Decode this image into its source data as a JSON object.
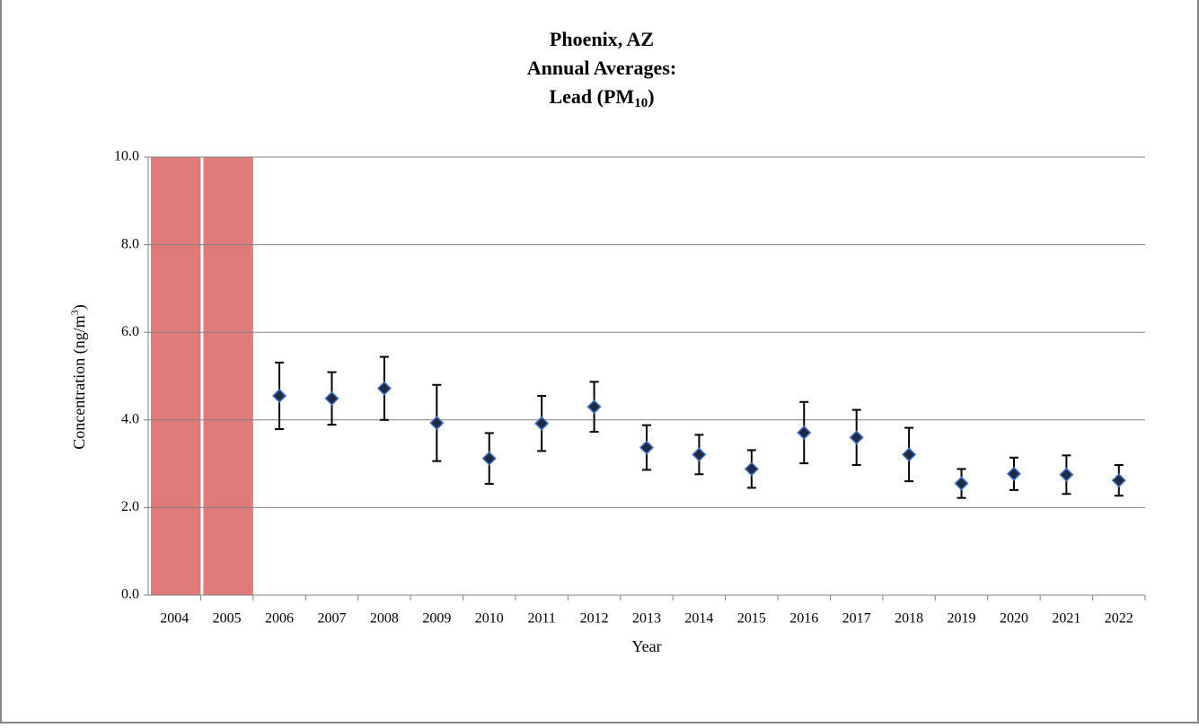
{
  "chart_data": {
    "type": "errorbar",
    "title_lines": [
      "Phoenix, AZ",
      "Annual Averages:"
    ],
    "title_last": [
      "Lead (PM",
      "10",
      ")"
    ],
    "ylabel": [
      "Concentration (ng/m",
      "3",
      ")"
    ],
    "xlabel": "Year",
    "categories": [
      "2004",
      "2005",
      "2006",
      "2007",
      "2008",
      "2009",
      "2010",
      "2011",
      "2012",
      "2013",
      "2014",
      "2015",
      "2016",
      "2017",
      "2018",
      "2019",
      "2020",
      "2021",
      "2022"
    ],
    "values": [
      null,
      null,
      4.55,
      4.49,
      4.72,
      3.93,
      3.12,
      3.92,
      4.3,
      3.37,
      3.21,
      2.88,
      3.71,
      3.6,
      3.21,
      2.55,
      2.77,
      2.75,
      2.62
    ],
    "errors": [
      null,
      null,
      0.76,
      0.6,
      0.72,
      0.87,
      0.58,
      0.63,
      0.57,
      0.51,
      0.45,
      0.43,
      0.7,
      0.63,
      0.61,
      0.33,
      0.37,
      0.44,
      0.35
    ],
    "color": "#1f2a44",
    "edge_color": "#4472c4",
    "highlight_indices": [
      0,
      1
    ],
    "highlight_color": "#e07b7b",
    "ylim": [
      0,
      10
    ],
    "yticks": [
      {
        "value": 0,
        "label": "0.0"
      },
      {
        "value": 2,
        "label": "2.0"
      },
      {
        "value": 4,
        "label": "4.0"
      },
      {
        "value": 6,
        "label": "6.0"
      },
      {
        "value": 8,
        "label": "8.0"
      },
      {
        "value": 10,
        "label": "10.0"
      }
    ],
    "grid": true
  }
}
